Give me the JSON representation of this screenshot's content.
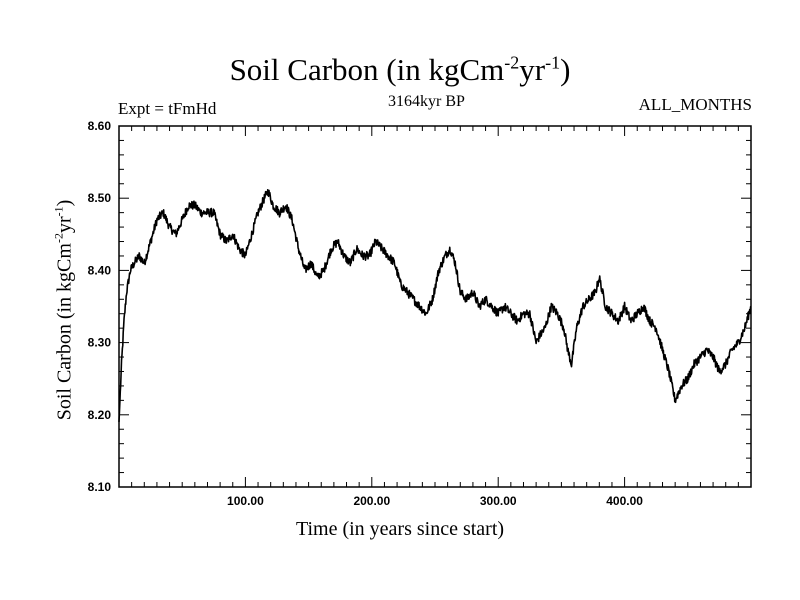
{
  "chart_data": {
    "type": "line",
    "title": {
      "base": "Soil Carbon (in kgCm",
      "exp1": "-2",
      "mid": "yr",
      "exp2": "-1",
      "end": ")"
    },
    "subtitle_left": "Expt = tFmHd",
    "subtitle_center": "3164kyr BP",
    "subtitle_right": "ALL_MONTHS",
    "xlabel": "Time (in years since start)",
    "ylabel": {
      "base": "Soil Carbon (in kgCm",
      "exp1": "-2",
      "mid": "yr",
      "exp2": "-1",
      "end": ")"
    },
    "xlim": [
      0,
      500
    ],
    "ylim": [
      8.1,
      8.6
    ],
    "x_ticks": [
      100,
      200,
      300,
      400
    ],
    "x_tick_labels": [
      "100.00",
      "200.00",
      "300.00",
      "400.00"
    ],
    "y_ticks": [
      8.1,
      8.2,
      8.3,
      8.4,
      8.5,
      8.6
    ],
    "y_tick_labels": [
      "8.10",
      "8.20",
      "8.30",
      "8.40",
      "8.50",
      "8.60"
    ],
    "grid": false,
    "series": [
      {
        "name": "Soil Carbon",
        "color": "#000000",
        "x": [
          0,
          2,
          4,
          6,
          9,
          12,
          16,
          20,
          25,
          30,
          35,
          40,
          45,
          50,
          55,
          60,
          65,
          70,
          75,
          80,
          85,
          90,
          95,
          100,
          105,
          110,
          115,
          118,
          122,
          127,
          132,
          137,
          142,
          147,
          152,
          157,
          162,
          168,
          173,
          178,
          183,
          188,
          193,
          198,
          203,
          208,
          213,
          218,
          223,
          228,
          233,
          238,
          243,
          248,
          253,
          258,
          262,
          266,
          270,
          275,
          280,
          285,
          290,
          295,
          300,
          305,
          310,
          315,
          320,
          325,
          330,
          333,
          337,
          342,
          347,
          352,
          355,
          358,
          362,
          367,
          372,
          377,
          380,
          385,
          390,
          395,
          400,
          405,
          410,
          415,
          420,
          425,
          430,
          435,
          440,
          445,
          450,
          455,
          460,
          465,
          470,
          475,
          480,
          485,
          490,
          495,
          500
        ],
        "values": [
          8.19,
          8.27,
          8.33,
          8.37,
          8.4,
          8.41,
          8.42,
          8.41,
          8.44,
          8.47,
          8.48,
          8.46,
          8.45,
          8.47,
          8.49,
          8.49,
          8.48,
          8.48,
          8.48,
          8.45,
          8.44,
          8.45,
          8.43,
          8.42,
          8.45,
          8.48,
          8.5,
          8.51,
          8.49,
          8.48,
          8.49,
          8.47,
          8.43,
          8.4,
          8.41,
          8.39,
          8.4,
          8.43,
          8.44,
          8.42,
          8.41,
          8.43,
          8.42,
          8.42,
          8.44,
          8.43,
          8.42,
          8.41,
          8.38,
          8.37,
          8.36,
          8.35,
          8.34,
          8.36,
          8.4,
          8.42,
          8.43,
          8.41,
          8.37,
          8.36,
          8.37,
          8.35,
          8.36,
          8.35,
          8.34,
          8.35,
          8.34,
          8.33,
          8.34,
          8.34,
          8.3,
          8.31,
          8.32,
          8.35,
          8.34,
          8.32,
          8.29,
          8.27,
          8.32,
          8.35,
          8.36,
          8.37,
          8.39,
          8.35,
          8.34,
          8.33,
          8.35,
          8.33,
          8.34,
          8.35,
          8.33,
          8.32,
          8.29,
          8.26,
          8.22,
          8.24,
          8.25,
          8.27,
          8.28,
          8.29,
          8.28,
          8.26,
          8.27,
          8.29,
          8.3,
          8.32,
          8.35
        ]
      }
    ]
  }
}
